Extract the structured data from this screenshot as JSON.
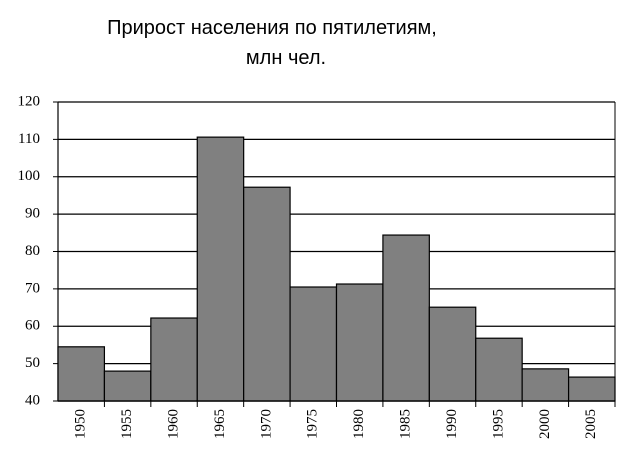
{
  "chart_data": {
    "type": "bar",
    "title": "Прирост населения по пятилетиям,",
    "subtitle": "млн чел.",
    "categories": [
      "1950",
      "1955",
      "1960",
      "1965",
      "1970",
      "1975",
      "1980",
      "1985",
      "1990",
      "1995",
      "2000",
      "2005"
    ],
    "values": [
      54.5,
      48,
      62.2,
      110.6,
      97.2,
      70.5,
      71.3,
      84.4,
      65.1,
      56.8,
      48.6,
      46.4
    ],
    "color": "#808080",
    "ylim": [
      40,
      120
    ],
    "yticks": [
      40,
      50,
      60,
      70,
      80,
      90,
      100,
      110,
      120
    ],
    "grid": true
  }
}
